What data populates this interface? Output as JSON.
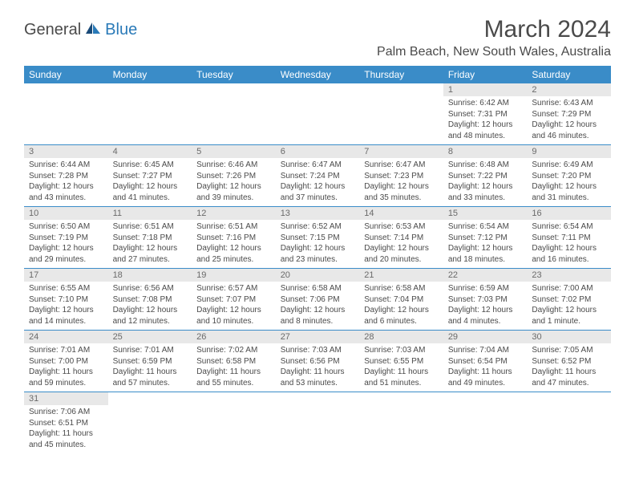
{
  "logo": {
    "part1": "General",
    "part2": "Blue"
  },
  "title": "March 2024",
  "location": "Palm Beach, New South Wales, Australia",
  "colors": {
    "header_bg": "#3a8cc8",
    "header_text": "#ffffff",
    "daynum_bg": "#e8e8e8",
    "text": "#4a4a4a",
    "accent": "#2a7ab8"
  },
  "day_headers": [
    "Sunday",
    "Monday",
    "Tuesday",
    "Wednesday",
    "Thursday",
    "Friday",
    "Saturday"
  ],
  "weeks": [
    [
      null,
      null,
      null,
      null,
      null,
      {
        "n": "1",
        "sr": "6:42 AM",
        "ss": "7:31 PM",
        "dh": "12",
        "dm": "48"
      },
      {
        "n": "2",
        "sr": "6:43 AM",
        "ss": "7:29 PM",
        "dh": "12",
        "dm": "46"
      }
    ],
    [
      {
        "n": "3",
        "sr": "6:44 AM",
        "ss": "7:28 PM",
        "dh": "12",
        "dm": "43"
      },
      {
        "n": "4",
        "sr": "6:45 AM",
        "ss": "7:27 PM",
        "dh": "12",
        "dm": "41"
      },
      {
        "n": "5",
        "sr": "6:46 AM",
        "ss": "7:26 PM",
        "dh": "12",
        "dm": "39"
      },
      {
        "n": "6",
        "sr": "6:47 AM",
        "ss": "7:24 PM",
        "dh": "12",
        "dm": "37"
      },
      {
        "n": "7",
        "sr": "6:47 AM",
        "ss": "7:23 PM",
        "dh": "12",
        "dm": "35"
      },
      {
        "n": "8",
        "sr": "6:48 AM",
        "ss": "7:22 PM",
        "dh": "12",
        "dm": "33"
      },
      {
        "n": "9",
        "sr": "6:49 AM",
        "ss": "7:20 PM",
        "dh": "12",
        "dm": "31"
      }
    ],
    [
      {
        "n": "10",
        "sr": "6:50 AM",
        "ss": "7:19 PM",
        "dh": "12",
        "dm": "29"
      },
      {
        "n": "11",
        "sr": "6:51 AM",
        "ss": "7:18 PM",
        "dh": "12",
        "dm": "27"
      },
      {
        "n": "12",
        "sr": "6:51 AM",
        "ss": "7:16 PM",
        "dh": "12",
        "dm": "25"
      },
      {
        "n": "13",
        "sr": "6:52 AM",
        "ss": "7:15 PM",
        "dh": "12",
        "dm": "23"
      },
      {
        "n": "14",
        "sr": "6:53 AM",
        "ss": "7:14 PM",
        "dh": "12",
        "dm": "20"
      },
      {
        "n": "15",
        "sr": "6:54 AM",
        "ss": "7:12 PM",
        "dh": "12",
        "dm": "18"
      },
      {
        "n": "16",
        "sr": "6:54 AM",
        "ss": "7:11 PM",
        "dh": "12",
        "dm": "16"
      }
    ],
    [
      {
        "n": "17",
        "sr": "6:55 AM",
        "ss": "7:10 PM",
        "dh": "12",
        "dm": "14"
      },
      {
        "n": "18",
        "sr": "6:56 AM",
        "ss": "7:08 PM",
        "dh": "12",
        "dm": "12"
      },
      {
        "n": "19",
        "sr": "6:57 AM",
        "ss": "7:07 PM",
        "dh": "12",
        "dm": "10"
      },
      {
        "n": "20",
        "sr": "6:58 AM",
        "ss": "7:06 PM",
        "dh": "12",
        "dm": "8"
      },
      {
        "n": "21",
        "sr": "6:58 AM",
        "ss": "7:04 PM",
        "dh": "12",
        "dm": "6"
      },
      {
        "n": "22",
        "sr": "6:59 AM",
        "ss": "7:03 PM",
        "dh": "12",
        "dm": "4"
      },
      {
        "n": "23",
        "sr": "7:00 AM",
        "ss": "7:02 PM",
        "dh": "12",
        "dm": "1"
      }
    ],
    [
      {
        "n": "24",
        "sr": "7:01 AM",
        "ss": "7:00 PM",
        "dh": "11",
        "dm": "59"
      },
      {
        "n": "25",
        "sr": "7:01 AM",
        "ss": "6:59 PM",
        "dh": "11",
        "dm": "57"
      },
      {
        "n": "26",
        "sr": "7:02 AM",
        "ss": "6:58 PM",
        "dh": "11",
        "dm": "55"
      },
      {
        "n": "27",
        "sr": "7:03 AM",
        "ss": "6:56 PM",
        "dh": "11",
        "dm": "53"
      },
      {
        "n": "28",
        "sr": "7:03 AM",
        "ss": "6:55 PM",
        "dh": "11",
        "dm": "51"
      },
      {
        "n": "29",
        "sr": "7:04 AM",
        "ss": "6:54 PM",
        "dh": "11",
        "dm": "49"
      },
      {
        "n": "30",
        "sr": "7:05 AM",
        "ss": "6:52 PM",
        "dh": "11",
        "dm": "47"
      }
    ],
    [
      {
        "n": "31",
        "sr": "7:06 AM",
        "ss": "6:51 PM",
        "dh": "11",
        "dm": "45"
      },
      null,
      null,
      null,
      null,
      null,
      null
    ]
  ],
  "labels": {
    "sunrise": "Sunrise:",
    "sunset": "Sunset:",
    "daylight": "Daylight:",
    "hours": "hours",
    "and": "and",
    "minutes": "minutes.",
    "minute": "minute."
  }
}
